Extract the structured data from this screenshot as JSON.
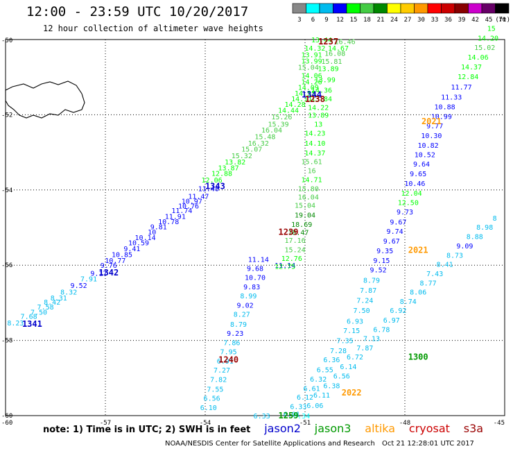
{
  "title": "12:00 - 23:59 UTC 10/20/2017",
  "subtitle": "12 hour collection of altimeter wave heights",
  "note": "note: 1) Time is in UTC; 2) SWH is in feet",
  "satellites": [
    {
      "name": "jason2",
      "color": "#0000cc"
    },
    {
      "name": "jason3",
      "color": "#009900"
    },
    {
      "name": "altika",
      "color": "#ff9900"
    },
    {
      "name": "cryosat",
      "color": "#cc0000"
    },
    {
      "name": "s3a",
      "color": "#990000"
    }
  ],
  "credit": "NOAA/NESDIS Center for Satellite Applications and Research",
  "credit_date": "Oct 21 12:28:01 UTC 2017",
  "chart_data": {
    "type": "scatter",
    "xlim": [
      -60,
      -45
    ],
    "ylim": [
      -60,
      -50
    ],
    "x_ticks": [
      -60,
      -57,
      -54,
      -51,
      -48,
      -45
    ],
    "y_ticks": [
      -50,
      -52,
      -54,
      -56,
      -58,
      -60
    ],
    "grid": true,
    "legend_units": "(ft)",
    "legend_bins": [
      {
        "label": "3",
        "color": "#888888"
      },
      {
        "label": "6",
        "color": "#00ffff"
      },
      {
        "label": "9",
        "color": "#00bbee"
      },
      {
        "label": "12",
        "color": "#0000ff"
      },
      {
        "label": "15",
        "color": "#00ff00"
      },
      {
        "label": "18",
        "color": "#44cc44"
      },
      {
        "label": "21",
        "color": "#008800"
      },
      {
        "label": "24",
        "color": "#ffff00"
      },
      {
        "label": "27",
        "color": "#ffcc00"
      },
      {
        "label": "30",
        "color": "#ff9900"
      },
      {
        "label": "33",
        "color": "#ff0000"
      },
      {
        "label": "36",
        "color": "#cc0000"
      },
      {
        "label": "39",
        "color": "#880000"
      },
      {
        "label": "42",
        "color": "#cc00cc"
      },
      {
        "label": "45",
        "color": "#660066"
      },
      {
        "label": "70",
        "color": "#000000"
      }
    ],
    "passes": [
      {
        "label": "1237",
        "x": -50.3,
        "y": -50.04,
        "satellite": "s3a"
      },
      {
        "label": "1344",
        "x": -50.8,
        "y": -51.45,
        "satellite": "jason2"
      },
      {
        "label": "1238",
        "x": -50.7,
        "y": -51.57,
        "satellite": "s3a"
      },
      {
        "label": "2021",
        "x": -47.2,
        "y": -52.16,
        "satellite": "altika"
      },
      {
        "label": "1343",
        "x": -53.7,
        "y": -53.88,
        "satellite": "jason2"
      },
      {
        "label": "1239",
        "x": -51.5,
        "y": -55.1,
        "satellite": "s3a"
      },
      {
        "label": "2021",
        "x": -47.6,
        "y": -55.58,
        "satellite": "altika"
      },
      {
        "label": "1342",
        "x": -56.9,
        "y": -56.18,
        "satellite": "jason2"
      },
      {
        "label": "1341",
        "x": -59.2,
        "y": -57.55,
        "satellite": "jason2"
      },
      {
        "label": "1300",
        "x": -47.6,
        "y": -58.42,
        "satellite": "jason3"
      },
      {
        "label": "1240",
        "x": -53.3,
        "y": -58.5,
        "satellite": "s3a"
      },
      {
        "label": "2022",
        "x": -49.6,
        "y": -59.37,
        "satellite": "altika"
      },
      {
        "label": "1259",
        "x": -51.5,
        "y": -59.98,
        "satellite": "jason3"
      }
    ],
    "tracks": [
      {
        "name": "track-1341-1344",
        "points": [
          {
            "x": -59.7,
            "y": -57.53,
            "v": 8.23
          },
          {
            "x": -59.3,
            "y": -57.35,
            "v": 7.68
          },
          {
            "x": -59.0,
            "y": -57.24,
            "v": 7.5
          },
          {
            "x": -58.8,
            "y": -57.1,
            "v": 7.58
          },
          {
            "x": -58.6,
            "y": -56.97,
            "v": 8.42
          },
          {
            "x": -58.4,
            "y": -56.86,
            "v": 8.31
          },
          {
            "x": -58.1,
            "y": -56.71,
            "v": 8.32
          },
          {
            "x": -57.8,
            "y": -56.53,
            "v": 9.52
          },
          {
            "x": -57.5,
            "y": -56.36,
            "v": 7.91
          },
          {
            "x": -57.2,
            "y": -56.21,
            "v": 9.17
          },
          {
            "x": -56.9,
            "y": -56.0,
            "v": 9.76
          },
          {
            "x": -56.7,
            "y": -55.87,
            "v": 10.77
          },
          {
            "x": -56.5,
            "y": -55.71,
            "v": 10.85
          },
          {
            "x": -56.2,
            "y": -55.55,
            "v": 9.41
          },
          {
            "x": -56.0,
            "y": -55.4,
            "v": 10.59
          },
          {
            "x": -55.8,
            "y": -55.26,
            "v": 10.14
          },
          {
            "x": -55.6,
            "y": -55.11,
            "v": 10.0
          },
          {
            "x": -55.4,
            "y": -54.97,
            "v": 9.81
          },
          {
            "x": -55.1,
            "y": -54.83,
            "v": 10.78
          },
          {
            "x": -54.9,
            "y": -54.7,
            "v": 11.91
          },
          {
            "x": -54.7,
            "y": -54.54,
            "v": 11.74
          },
          {
            "x": -54.5,
            "y": -54.42,
            "v": 10.76
          },
          {
            "x": -54.4,
            "y": -54.29,
            "v": 10.97
          },
          {
            "x": -54.2,
            "y": -54.16,
            "v": 11.47
          },
          {
            "x": -53.9,
            "y": -53.96,
            "v": 11.48
          },
          {
            "x": -53.8,
            "y": -53.73,
            "v": 12.06
          },
          {
            "x": -53.5,
            "y": -53.55,
            "v": 12.88
          },
          {
            "x": -53.3,
            "y": -53.4,
            "v": 13.87
          },
          {
            "x": -53.1,
            "y": -53.25,
            "v": 13.82
          },
          {
            "x": -52.9,
            "y": -53.08,
            "v": 15.32
          },
          {
            "x": -52.6,
            "y": -52.91,
            "v": 15.07
          },
          {
            "x": -52.4,
            "y": -52.75,
            "v": 16.32
          },
          {
            "x": -52.2,
            "y": -52.57,
            "v": 15.48
          },
          {
            "x": -52.0,
            "y": -52.4,
            "v": 16.04
          },
          {
            "x": -51.8,
            "y": -52.24,
            "v": 15.39
          },
          {
            "x": -51.7,
            "y": -52.05,
            "v": 15.26
          },
          {
            "x": -51.5,
            "y": -51.87,
            "v": 14.44
          },
          {
            "x": -51.3,
            "y": -51.72,
            "v": 14.28
          },
          {
            "x": -51.1,
            "y": -51.57,
            "v": 14.11
          },
          {
            "x": -51.0,
            "y": -51.42,
            "v": 14.55
          },
          {
            "x": -50.9,
            "y": -51.26,
            "v": 14.09
          },
          {
            "x": -50.8,
            "y": -51.12,
            "v": 14.26
          },
          {
            "x": -50.8,
            "y": -50.95,
            "v": 14.06
          },
          {
            "x": -50.9,
            "y": -50.73,
            "v": 15.04
          },
          {
            "x": -50.8,
            "y": -50.56,
            "v": 13.99
          },
          {
            "x": -50.8,
            "y": -50.4,
            "v": 13.91
          },
          {
            "x": -50.7,
            "y": -50.22,
            "v": 14.32
          },
          {
            "x": -50.5,
            "y": -50.0,
            "v": 13.44
          }
        ]
      },
      {
        "name": "track-1239-1238",
        "points": [
          {
            "x": -51.6,
            "y": -56.0,
            "v": 11.14
          },
          {
            "x": -51.6,
            "y": -56.02,
            "v": 12.75
          },
          {
            "x": -51.4,
            "y": -55.81,
            "v": 12.76
          },
          {
            "x": -51.3,
            "y": -55.58,
            "v": 15.24
          },
          {
            "x": -51.3,
            "y": -55.33,
            "v": 17.16
          },
          {
            "x": -51.2,
            "y": -55.12,
            "v": 18.47
          },
          {
            "x": -51.1,
            "y": -54.91,
            "v": 18.69
          },
          {
            "x": -51.0,
            "y": -54.66,
            "v": 19.04
          },
          {
            "x": -51.0,
            "y": -54.4,
            "v": 15.04
          },
          {
            "x": -50.9,
            "y": -54.18,
            "v": 16.04
          },
          {
            "x": -50.9,
            "y": -53.96,
            "v": 15.8
          },
          {
            "x": -50.8,
            "y": -53.72,
            "v": 14.71
          },
          {
            "x": -50.8,
            "y": -53.48,
            "v": 16.0
          },
          {
            "x": -50.8,
            "y": -53.24,
            "v": 15.61
          },
          {
            "x": -50.7,
            "y": -53.01,
            "v": 14.37
          },
          {
            "x": -50.7,
            "y": -52.75,
            "v": 14.1
          },
          {
            "x": -50.7,
            "y": -52.48,
            "v": 14.23
          },
          {
            "x": -50.6,
            "y": -52.24,
            "v": 13.0
          },
          {
            "x": -50.6,
            "y": -52.0,
            "v": 13.89
          },
          {
            "x": -50.6,
            "y": -51.8,
            "v": 14.22
          },
          {
            "x": -50.5,
            "y": -51.57,
            "v": 13.84
          },
          {
            "x": -50.5,
            "y": -51.34,
            "v": 14.36
          },
          {
            "x": -50.4,
            "y": -51.06,
            "v": 13.99
          },
          {
            "x": -50.3,
            "y": -50.77,
            "v": 13.89
          },
          {
            "x": -50.2,
            "y": -50.57,
            "v": 15.81
          },
          {
            "x": -50.1,
            "y": -50.36,
            "v": 16.08
          },
          {
            "x": -50.0,
            "y": -50.22,
            "v": 14.67
          },
          {
            "x": -49.8,
            "y": -50.05,
            "v": 16.46
          }
        ]
      },
      {
        "name": "track-1240",
        "points": [
          {
            "x": -53.9,
            "y": -59.78,
            "v": 6.1
          },
          {
            "x": -53.8,
            "y": -59.53,
            "v": 6.56
          },
          {
            "x": -53.7,
            "y": -59.29,
            "v": 7.55
          },
          {
            "x": -53.6,
            "y": -59.03,
            "v": 7.82
          },
          {
            "x": -53.5,
            "y": -58.78,
            "v": 7.27
          },
          {
            "x": -53.4,
            "y": -58.54,
            "v": 6.91
          },
          {
            "x": -53.3,
            "y": -58.29,
            "v": 7.95
          },
          {
            "x": -53.2,
            "y": -58.05,
            "v": 7.86
          },
          {
            "x": -53.1,
            "y": -57.8,
            "v": 9.23
          },
          {
            "x": -53.0,
            "y": -57.56,
            "v": 8.79
          },
          {
            "x": -52.9,
            "y": -57.3,
            "v": 8.27
          },
          {
            "x": -52.8,
            "y": -57.06,
            "v": 9.02
          },
          {
            "x": -52.7,
            "y": -56.81,
            "v": 8.99
          },
          {
            "x": -52.6,
            "y": -56.57,
            "v": 9.83
          },
          {
            "x": -52.5,
            "y": -56.32,
            "v": 10.7
          },
          {
            "x": -52.5,
            "y": -56.08,
            "v": 9.68
          },
          {
            "x": -52.4,
            "y": -55.84,
            "v": 11.14
          }
        ]
      },
      {
        "name": "track-2021",
        "points": [
          {
            "x": -51.4,
            "y": -59.95,
            "v": 6.01
          },
          {
            "x": -51.2,
            "y": -59.75,
            "v": 6.33
          },
          {
            "x": -51.0,
            "y": -59.5,
            "v": 6.12
          },
          {
            "x": -50.8,
            "y": -59.27,
            "v": 6.61
          },
          {
            "x": -50.6,
            "y": -59.02,
            "v": 6.32
          },
          {
            "x": -50.4,
            "y": -58.77,
            "v": 6.55
          },
          {
            "x": -50.2,
            "y": -58.51,
            "v": 6.36
          },
          {
            "x": -50.0,
            "y": -58.27,
            "v": 7.28
          },
          {
            "x": -49.8,
            "y": -58.0,
            "v": 7.35
          },
          {
            "x": -49.6,
            "y": -57.73,
            "v": 7.15
          },
          {
            "x": -49.5,
            "y": -57.48,
            "v": 6.93
          },
          {
            "x": -49.3,
            "y": -57.2,
            "v": 7.5
          },
          {
            "x": -49.2,
            "y": -56.93,
            "v": 7.24
          },
          {
            "x": -49.1,
            "y": -56.66,
            "v": 7.87
          },
          {
            "x": -49.0,
            "y": -56.39,
            "v": 8.79
          },
          {
            "x": -48.8,
            "y": -56.12,
            "v": 9.52
          },
          {
            "x": -48.7,
            "y": -55.87,
            "v": 9.15
          },
          {
            "x": -48.6,
            "y": -55.61,
            "v": 9.35
          },
          {
            "x": -48.4,
            "y": -55.35,
            "v": 9.67
          },
          {
            "x": -48.3,
            "y": -55.09,
            "v": 9.74
          },
          {
            "x": -48.2,
            "y": -54.84,
            "v": 9.67
          },
          {
            "x": -48.0,
            "y": -54.58,
            "v": 9.73
          },
          {
            "x": -47.9,
            "y": -54.33,
            "v": 12.5
          },
          {
            "x": -47.8,
            "y": -54.08,
            "v": 12.04
          },
          {
            "x": -47.7,
            "y": -53.82,
            "v": 10.46
          },
          {
            "x": -47.6,
            "y": -53.56,
            "v": 9.65
          },
          {
            "x": -47.5,
            "y": -53.3,
            "v": 9.64
          },
          {
            "x": -47.4,
            "y": -53.05,
            "v": 10.52
          },
          {
            "x": -47.3,
            "y": -52.8,
            "v": 10.82
          },
          {
            "x": -47.2,
            "y": -52.55,
            "v": 10.3
          },
          {
            "x": -47.1,
            "y": -52.29,
            "v": 9.77
          },
          {
            "x": -46.9,
            "y": -52.04,
            "v": 10.99
          },
          {
            "x": -46.8,
            "y": -51.78,
            "v": 10.88
          },
          {
            "x": -46.6,
            "y": -51.52,
            "v": 11.33
          },
          {
            "x": -46.3,
            "y": -51.25,
            "v": 11.77
          },
          {
            "x": -46.1,
            "y": -50.98,
            "v": 12.84
          },
          {
            "x": -46.0,
            "y": -50.72,
            "v": 14.37
          },
          {
            "x": -45.8,
            "y": -50.46,
            "v": 14.06
          },
          {
            "x": -45.6,
            "y": -50.2,
            "v": 15.02
          },
          {
            "x": -45.5,
            "y": -49.95,
            "v": 14.2
          },
          {
            "x": -45.4,
            "y": -49.7,
            "v": 15
          }
        ]
      },
      {
        "name": "track-1259-1300",
        "points": [
          {
            "x": -52.3,
            "y": -60.0,
            "v": 6.33
          },
          {
            "x": -51.1,
            "y": -60.0,
            "v": 5.34
          },
          {
            "x": -50.7,
            "y": -59.72,
            "v": 6.06
          },
          {
            "x": -50.5,
            "y": -59.45,
            "v": 6.11
          },
          {
            "x": -50.2,
            "y": -59.2,
            "v": 6.38
          },
          {
            "x": -49.9,
            "y": -58.94,
            "v": 6.56
          },
          {
            "x": -49.7,
            "y": -58.69,
            "v": 6.14
          },
          {
            "x": -49.5,
            "y": -58.43,
            "v": 6.72
          },
          {
            "x": -49.2,
            "y": -58.19,
            "v": 7.87
          },
          {
            "x": -49.0,
            "y": -57.94,
            "v": 7.13
          },
          {
            "x": -48.7,
            "y": -57.7,
            "v": 6.78
          },
          {
            "x": -48.4,
            "y": -57.45,
            "v": 6.97
          },
          {
            "x": -48.2,
            "y": -57.2,
            "v": 6.92
          },
          {
            "x": -47.9,
            "y": -56.96,
            "v": 8.74
          },
          {
            "x": -47.6,
            "y": -56.71,
            "v": 8.06
          },
          {
            "x": -47.3,
            "y": -56.47,
            "v": 8.77
          },
          {
            "x": -47.1,
            "y": -56.22,
            "v": 7.43
          },
          {
            "x": -46.8,
            "y": -55.97,
            "v": 8.41
          },
          {
            "x": -46.5,
            "y": -55.73,
            "v": 8.73
          },
          {
            "x": -46.2,
            "y": -55.48,
            "v": 9.09
          },
          {
            "x": -45.9,
            "y": -55.23,
            "v": 8.88
          },
          {
            "x": -45.6,
            "y": -54.98,
            "v": 8.98
          },
          {
            "x": -45.3,
            "y": -54.74,
            "v": 8
          }
        ]
      }
    ]
  }
}
